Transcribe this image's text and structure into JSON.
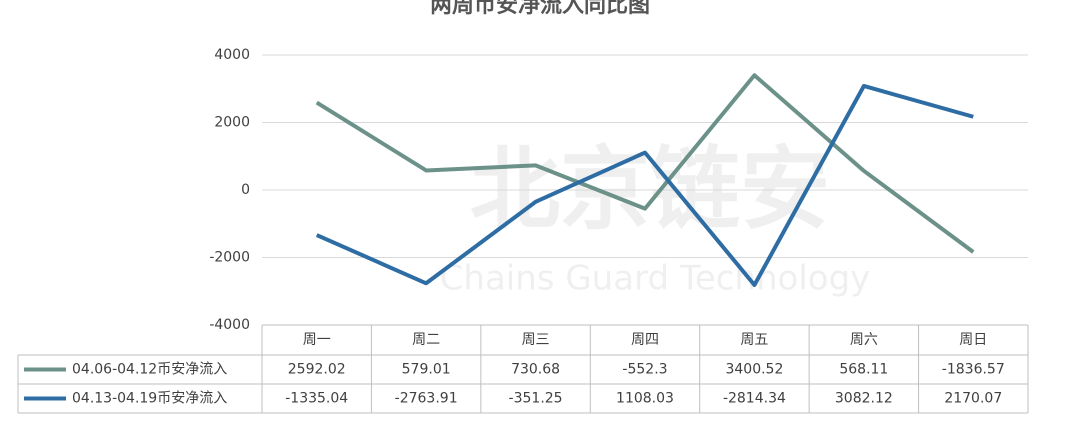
{
  "chart_data": {
    "type": "line",
    "title": "两周币安净流入同比图",
    "watermark": "北京链安",
    "watermark_subtitle": "Chains Guard Technology",
    "categories": [
      "周一",
      "周二",
      "周三",
      "周四",
      "周五",
      "周六",
      "周日"
    ],
    "series": [
      {
        "name": "04.06-04.12币安净流入",
        "color": "#6b9188",
        "values": [
          2592.02,
          579.01,
          730.68,
          -552.3,
          3400.52,
          568.11,
          -1836.57
        ]
      },
      {
        "name": "04.13-04.19币安净流入",
        "color": "#2e6ca4",
        "values": [
          -1335.04,
          -2763.91,
          -351.25,
          1108.03,
          -2814.34,
          3082.12,
          2170.07
        ]
      }
    ],
    "ylim": [
      -4000,
      4000
    ],
    "yticks": [
      -4000,
      -2000,
      0,
      2000,
      4000
    ],
    "grid": true,
    "data_table": true
  }
}
